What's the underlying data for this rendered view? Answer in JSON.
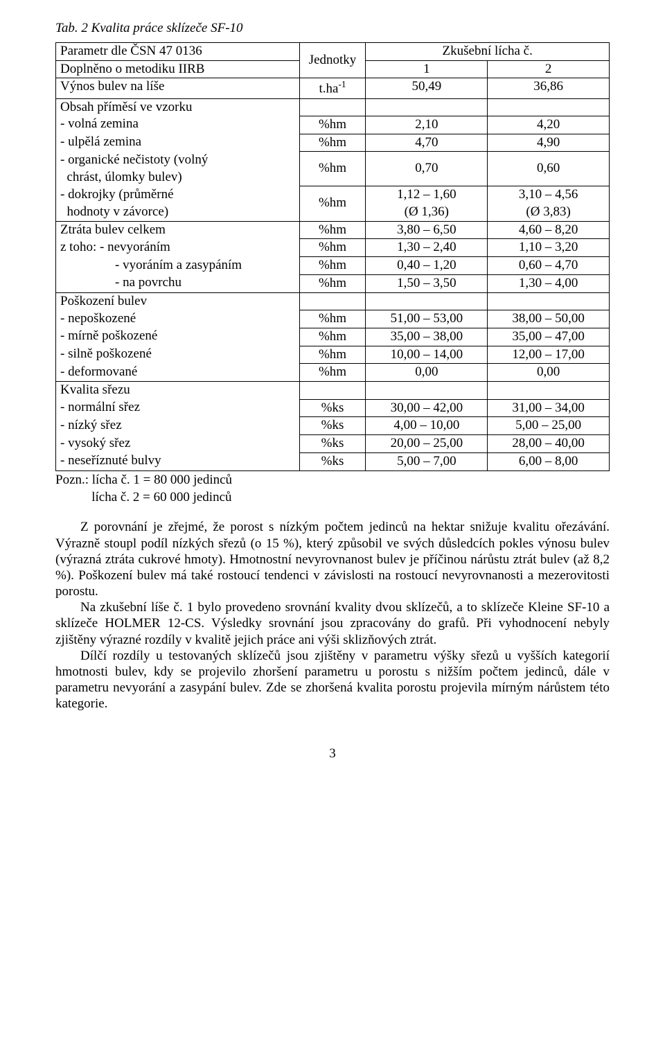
{
  "title": "Tab. 2 Kvalita práce sklízeče SF-10",
  "header": {
    "param_line1": "Parametr dle ČSN 47 0136",
    "param_line2": "Doplněno o metodiku IIRB",
    "unit_label": "Jednotky",
    "test_label": "Zkušební lícha č.",
    "col1": "1",
    "col2": "2"
  },
  "rows": {
    "yield_label": "Výnos bulev na líše",
    "yield_unit_pre": "t.ha",
    "yield_unit_sup": "-1",
    "yield_v1": "50,49",
    "yield_v2": "36,86",
    "admixture_label": "Obsah příměsí ve vzorku",
    "free_soil_label": "- volná zemina",
    "free_soil_unit": "%hm",
    "free_soil_v1": "2,10",
    "free_soil_v2": "4,20",
    "adhered_soil_label": "- ulpělá zemina",
    "adhered_soil_unit": "%hm",
    "adhered_soil_v1": "4,70",
    "adhered_soil_v2": "4,90",
    "organic_line1": "- organické nečistoty (volný",
    "organic_line2": "  chrást, úlomky bulev)",
    "organic_unit": "%hm",
    "organic_v1": "0,70",
    "organic_v2": "0,60",
    "dokrojky_line1": "- dokrojky (průměrné",
    "dokrojky_line2": "  hodnoty v závorce)",
    "dokrojky_unit": "%hm",
    "dokrojky_v1a": "1,12 – 1,60",
    "dokrojky_v1b": "(Ø 1,36)",
    "dokrojky_v2a": "3,10 – 4,56",
    "dokrojky_v2b": "(Ø 3,83)",
    "loss_total_label": "Ztráta bulev celkem",
    "loss_total_unit": "%hm",
    "loss_total_v1": "3,80 – 6,50",
    "loss_total_v2": "4,60 – 8,20",
    "loss_nev_label": "z toho: - nevyoráním",
    "loss_nev_unit": "%hm",
    "loss_nev_v1": "1,30 – 2,40",
    "loss_nev_v2": "1,10 – 3,20",
    "loss_vyor_label": "- vyoráním a zasypáním",
    "loss_vyor_unit": "%hm",
    "loss_vyor_v1": "0,40 – 1,20",
    "loss_vyor_v2": "0,60 – 4,70",
    "loss_pov_label": "- na povrchu",
    "loss_pov_unit": "%hm",
    "loss_pov_v1": "1,50 – 3,50",
    "loss_pov_v2": "1,30 – 4,00",
    "damage_label": "Poškození bulev",
    "dmg_none_label": "- nepoškozené",
    "dmg_none_unit": "%hm",
    "dmg_none_v1": "51,00 – 53,00",
    "dmg_none_v2": "38,00 – 50,00",
    "dmg_mild_label": "- mírně poškozené",
    "dmg_mild_unit": "%hm",
    "dmg_mild_v1": "35,00 – 38,00",
    "dmg_mild_v2": "35,00 – 47,00",
    "dmg_heavy_label": "- silně poškozené",
    "dmg_heavy_unit": "%hm",
    "dmg_heavy_v1": "10,00 – 14,00",
    "dmg_heavy_v2": "12,00 – 17,00",
    "dmg_deform_label": "- deformované",
    "dmg_deform_unit": "%hm",
    "dmg_deform_v1": "0,00",
    "dmg_deform_v2": "0,00",
    "cut_label": "Kvalita sřezu",
    "cut_norm_label": "- normální sřez",
    "cut_norm_unit": "%ks",
    "cut_norm_v1": "30,00 – 42,00",
    "cut_norm_v2": "31,00 – 34,00",
    "cut_low_label": "- nízký sřez",
    "cut_low_unit": "%ks",
    "cut_low_v1": "4,00 – 10,00",
    "cut_low_v2": "5,00 – 25,00",
    "cut_high_label": "- vysoký sřez",
    "cut_high_unit": "%ks",
    "cut_high_v1": "20,00 – 25,00",
    "cut_high_v2": "28,00 – 40,00",
    "cut_uncut_label": "- neseříznuté bulvy",
    "cut_uncut_unit": "%ks",
    "cut_uncut_v1": "5,00 – 7,00",
    "cut_uncut_v2": "6,00 – 8,00"
  },
  "notes": {
    "line1": "Pozn.: lícha č. 1 = 80 000 jedinců",
    "line2_indent": "           lícha č. 2 = 60 000 jedinců"
  },
  "body": {
    "p1": "Z porovnání je zřejmé, že porost s nízkým počtem jedinců na hektar snižuje kvalitu ořezávání. Výrazně stoupl podíl nízkých sřezů (o 15 %), který způsobil ve svých důsledcích pokles výnosu bulev (výrazná ztráta cukrové hmoty). Hmotnostní nevyrovnanost bulev je příčinou nárůstu ztrát bulev (až 8,2 %). Poškození bulev má také rostoucí tendenci v závislosti na  rostoucí nevyrovnanosti a mezerovitosti porostu.",
    "p2": "Na zkušební líše č. 1 bylo provedeno srovnání kvality dvou sklízečů, a to sklízeče Kleine SF-10 a sklízeče HOLMER 12-CS. Výsledky srovnání jsou zpracovány do grafů. Při vyhodnocení nebyly zjištěny výrazné rozdíly v kvalitě jejich práce ani výši sklizňových ztrát.",
    "p3": "Dílčí rozdíly u testovaných sklízečů jsou zjištěny v parametru výšky sřezů u vyšších kategorií hmotnosti bulev, kdy se projevilo zhoršení parametru u porostu s nižším počtem jedinců, dále v parametru nevyorání a zasypání bulev. Zde se zhoršená kvalita porostu projevila mírným nárůstem této kategorie."
  },
  "page_number": "3"
}
